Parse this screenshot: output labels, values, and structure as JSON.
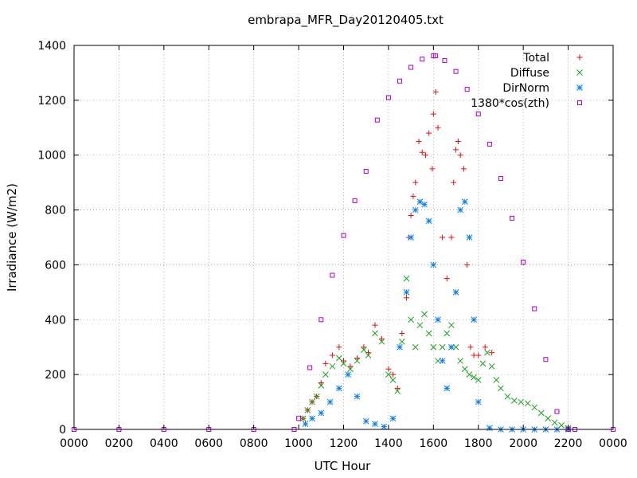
{
  "chart_data": {
    "type": "scatter",
    "title": "embrapa_MFR_Day20120405.txt",
    "xlabel": "UTC Hour",
    "ylabel": "Irradiance (W/m2)",
    "x_unit": "hours UTC",
    "xlim": [
      0,
      24
    ],
    "ylim": [
      0,
      1400
    ],
    "x_ticks": [
      0,
      2,
      4,
      6,
      8,
      10,
      12,
      14,
      16,
      18,
      20,
      22,
      24
    ],
    "x_tick_labels": [
      "0000",
      "0200",
      "0400",
      "0600",
      "0800",
      "1000",
      "1200",
      "1400",
      "1600",
      "1800",
      "2000",
      "2200",
      "0000"
    ],
    "y_ticks": [
      0,
      200,
      400,
      600,
      800,
      1000,
      1200,
      1400
    ],
    "y_tick_labels": [
      "0",
      "200",
      "400",
      "600",
      "800",
      "1000",
      "1200",
      "1400"
    ],
    "grid": true,
    "legend_position": "top-right",
    "series": [
      {
        "name": "Total",
        "marker": "plus",
        "color": "#e01010",
        "x": [
          10.2,
          10.4,
          10.6,
          10.8,
          11.0,
          11.2,
          11.5,
          11.8,
          12.0,
          12.3,
          12.6,
          12.9,
          13.1,
          13.4,
          13.7,
          14.0,
          14.2,
          14.4,
          14.6,
          14.8,
          14.9,
          15.0,
          15.1,
          15.2,
          15.35,
          15.5,
          15.65,
          15.8,
          15.95,
          16.0,
          16.1,
          16.2,
          16.4,
          16.6,
          16.8,
          16.9,
          17.0,
          17.1,
          17.2,
          17.35,
          17.5,
          17.65,
          17.8,
          18.0,
          18.3,
          18.6
        ],
        "y": [
          40,
          70,
          100,
          120,
          170,
          240,
          270,
          300,
          250,
          230,
          260,
          300,
          280,
          380,
          330,
          220,
          200,
          150,
          350,
          480,
          700,
          780,
          850,
          900,
          1050,
          1010,
          1000,
          1080,
          950,
          1150,
          1230,
          1100,
          700,
          550,
          700,
          900,
          1020,
          1050,
          1000,
          950,
          600,
          300,
          270,
          270,
          300,
          280
        ]
      },
      {
        "name": "Diffuse",
        "marker": "x",
        "color": "#20a020",
        "x": [
          10.2,
          10.4,
          10.6,
          10.8,
          11.0,
          11.2,
          11.5,
          11.8,
          12.0,
          12.3,
          12.6,
          12.9,
          13.1,
          13.4,
          13.7,
          14.0,
          14.2,
          14.4,
          14.6,
          14.8,
          15.0,
          15.2,
          15.4,
          15.6,
          15.8,
          16.0,
          16.2,
          16.4,
          16.6,
          16.8,
          17.0,
          17.2,
          17.4,
          17.6,
          17.8,
          18.0,
          18.2,
          18.4,
          18.6,
          18.8,
          19.0,
          19.3,
          19.6,
          19.9,
          20.2,
          20.5,
          20.8,
          21.1,
          21.4,
          21.7,
          22.0
        ],
        "y": [
          40,
          70,
          100,
          120,
          160,
          200,
          230,
          260,
          240,
          220,
          250,
          290,
          270,
          350,
          320,
          200,
          180,
          140,
          320,
          550,
          400,
          300,
          380,
          420,
          350,
          300,
          250,
          300,
          350,
          380,
          300,
          250,
          220,
          200,
          190,
          180,
          240,
          280,
          230,
          180,
          150,
          120,
          105,
          100,
          95,
          80,
          60,
          40,
          25,
          15,
          5
        ]
      },
      {
        "name": "DirNorm",
        "marker": "star",
        "color": "#1080e0",
        "x": [
          10.3,
          10.6,
          11.0,
          11.4,
          11.8,
          12.2,
          12.6,
          13.0,
          13.4,
          13.8,
          14.2,
          14.5,
          14.8,
          15.0,
          15.2,
          15.4,
          15.6,
          15.8,
          16.0,
          16.2,
          16.4,
          16.6,
          16.8,
          17.0,
          17.2,
          17.4,
          17.6,
          17.8,
          18.0,
          18.5,
          19.0,
          19.5,
          20.0,
          20.5,
          21.0,
          21.5,
          22.0
        ],
        "y": [
          20,
          40,
          60,
          100,
          150,
          200,
          120,
          30,
          20,
          10,
          40,
          300,
          500,
          700,
          800,
          830,
          820,
          760,
          600,
          400,
          250,
          150,
          300,
          500,
          800,
          830,
          700,
          400,
          100,
          5,
          0,
          0,
          0,
          0,
          0,
          0,
          0
        ]
      },
      {
        "name": "1380*cos(zth)",
        "marker": "square",
        "color": "#b000d0",
        "x": [
          0,
          2,
          4,
          6,
          8,
          9.8,
          10.0,
          10.5,
          11.0,
          11.5,
          12.0,
          12.5,
          13.0,
          13.5,
          14.0,
          14.5,
          15.0,
          15.5,
          16.0,
          16.1,
          16.5,
          17.0,
          17.5,
          18.0,
          18.5,
          19.0,
          19.5,
          20.0,
          20.5,
          21.0,
          21.5,
          22.0,
          22.3,
          24
        ],
        "y": [
          0,
          0,
          0,
          0,
          0,
          0,
          40,
          225,
          400,
          562,
          707,
          834,
          941,
          1128,
          1210,
          1270,
          1320,
          1350,
          1362,
          1362,
          1345,
          1305,
          1240,
          1150,
          1040,
          915,
          770,
          610,
          440,
          255,
          65,
          0,
          0,
          0
        ]
      }
    ]
  }
}
